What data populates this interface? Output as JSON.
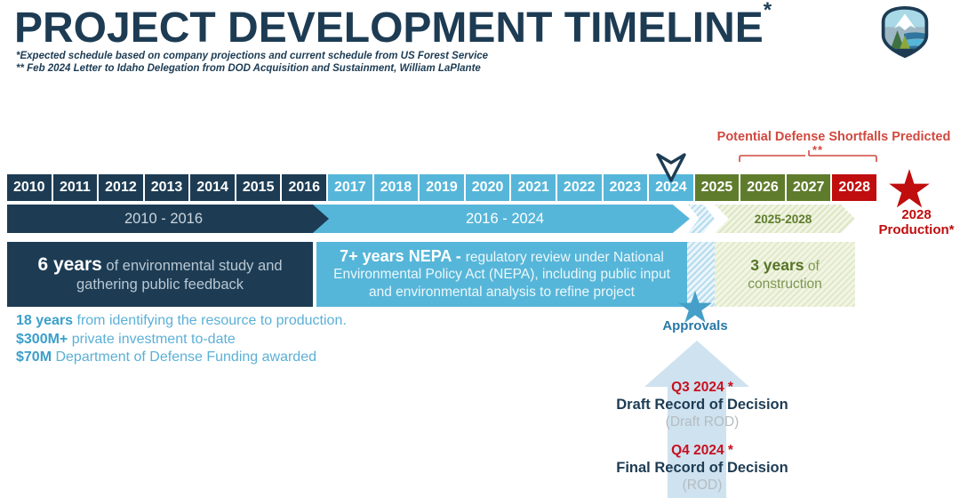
{
  "header": {
    "title": "PROJECT DEVELOPMENT TIMELINE",
    "title_asterisk": "*",
    "footnote1": "*Expected schedule based on company projections and current schedule from US Forest Service",
    "footnote2": "** Feb 2024 Letter to Idaho Delegation from DOD Acquisition and Sustainment, William LaPlante"
  },
  "icons": {
    "logo": "mountain-shield-logo",
    "year_marker": "chevron-down-marker",
    "approvals": "blue-star",
    "production": "red-star",
    "decisions_arrow": "up-arrow"
  },
  "shortfall_callout": {
    "label": "Potential Defense Shortfalls Predicted",
    "note_marker": "**",
    "color": "#d0493f"
  },
  "timeline": {
    "marker_year": "2024",
    "phase_colors": {
      "study": "#1d3c54",
      "nepa": "#56b6d9",
      "construction": "#5f7c2d",
      "production": "#c00d0d"
    },
    "years": [
      {
        "label": "2010",
        "phase": "study"
      },
      {
        "label": "2011",
        "phase": "study"
      },
      {
        "label": "2012",
        "phase": "study"
      },
      {
        "label": "2013",
        "phase": "study"
      },
      {
        "label": "2014",
        "phase": "study"
      },
      {
        "label": "2015",
        "phase": "study"
      },
      {
        "label": "2016",
        "phase": "study"
      },
      {
        "label": "2017",
        "phase": "nepa"
      },
      {
        "label": "2018",
        "phase": "nepa"
      },
      {
        "label": "2019",
        "phase": "nepa"
      },
      {
        "label": "2020",
        "phase": "nepa"
      },
      {
        "label": "2021",
        "phase": "nepa"
      },
      {
        "label": "2022",
        "phase": "nepa"
      },
      {
        "label": "2023",
        "phase": "nepa"
      },
      {
        "label": "2024",
        "phase": "nepa"
      },
      {
        "label": "2025",
        "phase": "construction"
      },
      {
        "label": "2026",
        "phase": "construction"
      },
      {
        "label": "2027",
        "phase": "construction"
      },
      {
        "label": "2028",
        "phase": "production"
      }
    ]
  },
  "phase_bars": {
    "study": "2010 - 2016",
    "nepa": "2016 - 2024",
    "construction": "2025-2028"
  },
  "phase_boxes": {
    "study": {
      "bold": "6 years",
      "rest": " of environmental study and gathering public feedback"
    },
    "nepa": {
      "bold": "7+ years NEPA - ",
      "rest": "regulatory review under National Environmental Policy Act (NEPA), including public input and environmental analysis to refine project"
    },
    "construction": {
      "bold": "3 years",
      "rest": " of construction"
    }
  },
  "production": {
    "line1": "2028",
    "line2": "Production*"
  },
  "approvals": {
    "label": "Approvals"
  },
  "stats": [
    {
      "bold": "18 years",
      "rest": " from identifying the resource to production."
    },
    {
      "bold": "$300M+",
      "rest": " private investment to-date"
    },
    {
      "bold": "$70M",
      "rest": " Department of Defense Funding awarded"
    }
  ],
  "decisions": [
    {
      "date": "Q3 2024 *",
      "title": "Draft Record of Decision",
      "sub": "(Draft ROD)"
    },
    {
      "date": "Q4 2024 *",
      "title": "Final Record of Decision",
      "sub": "(ROD)"
    }
  ]
}
